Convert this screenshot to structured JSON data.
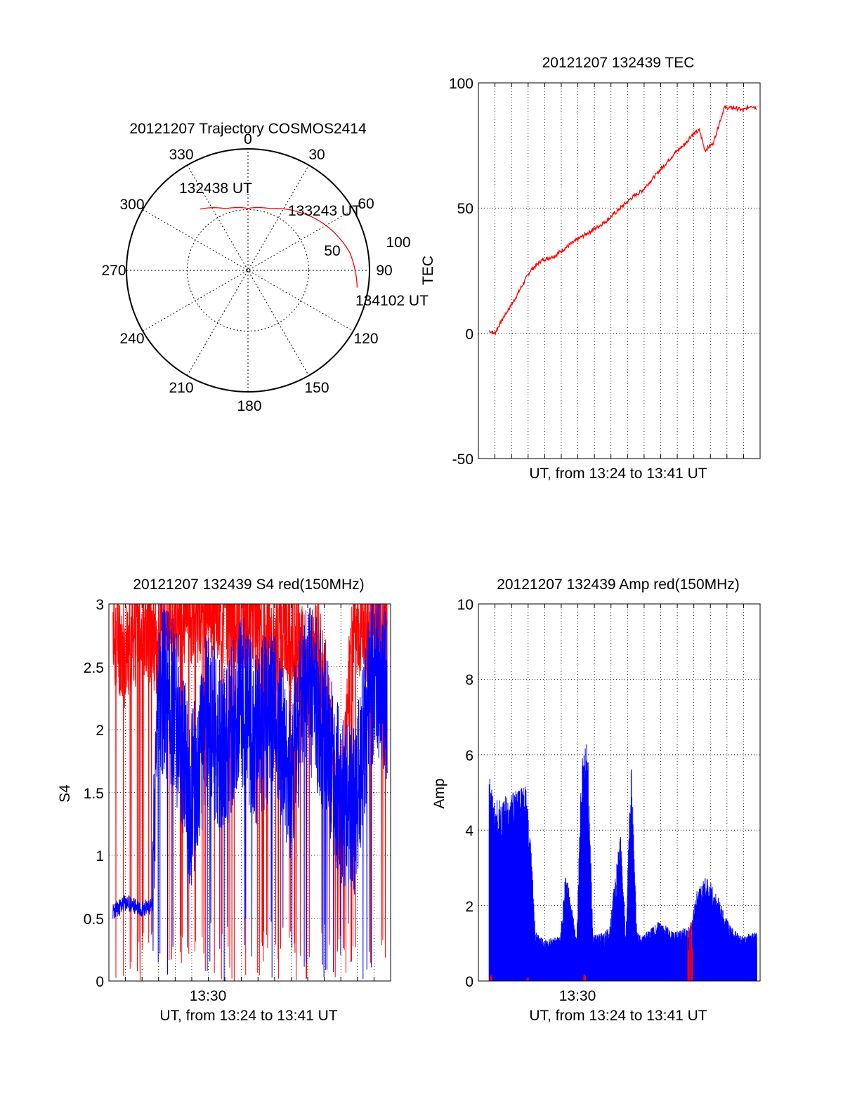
{
  "figure": {
    "background": "#ffffff",
    "colors": {
      "red_series": "#ff0000",
      "blue_series": "#0000ff",
      "axis": "#000000"
    }
  },
  "polar": {
    "title": "20121207 Trajectory COSMOS2414",
    "azimuth_labels": [
      "0",
      "30",
      "60",
      "90",
      "120",
      "150",
      "180",
      "210",
      "240",
      "270",
      "300",
      "330"
    ],
    "ring_labels": [
      "50",
      "100"
    ],
    "annotations": [
      "132438 UT",
      "133243 UT",
      "134102 UT"
    ]
  },
  "tec": {
    "title": "20121207 132439 TEC",
    "ylabel": "TEC",
    "xlabel": "UT, from 13:24 to 13:41 UT",
    "y_ticks": [
      "100",
      "50",
      "0",
      "-50"
    ]
  },
  "s4": {
    "title": "20121207 132439 S4 red(150MHz)",
    "ylabel": "S4",
    "xlabel": "UT, from 13:24 to 13:41 UT",
    "x_tick": "13:30",
    "y_ticks": [
      "3",
      "2.5",
      "2",
      "1.5",
      "1",
      "0.5",
      "0"
    ]
  },
  "amp": {
    "title": "20121207 132439 Amp red(150MHz)",
    "ylabel": "Amp",
    "xlabel": "UT, from 13:24 to 13:41 UT",
    "x_tick": "13:30",
    "y_ticks": [
      "10",
      "8",
      "6",
      "4",
      "2",
      "0"
    ]
  },
  "chart_data": [
    {
      "type": "scatter",
      "subtype": "polar-trajectory",
      "title": "20121207 Trajectory COSMOS2414",
      "r_range": [
        0,
        100
      ],
      "rings": [
        50,
        100
      ],
      "grid": true,
      "trajectory": [
        {
          "label": "132438 UT",
          "azimuth_deg": 322,
          "zenith_deg": 64
        },
        {
          "azimuth_deg": 340,
          "zenith_deg": 54
        },
        {
          "azimuth_deg": 0,
          "zenith_deg": 51
        },
        {
          "azimuth_deg": 20,
          "zenith_deg": 54
        },
        {
          "label": "133243 UT",
          "azimuth_deg": 40,
          "zenith_deg": 63
        },
        {
          "azimuth_deg": 60,
          "zenith_deg": 74
        },
        {
          "azimuth_deg": 80,
          "zenith_deg": 85
        },
        {
          "label": "134102 UT",
          "azimuth_deg": 99,
          "zenith_deg": 91
        }
      ]
    },
    {
      "type": "line",
      "title": "20121207 132439 TEC",
      "xlabel": "UT, from 13:24 to 13:41 UT",
      "ylabel": "TEC",
      "xlim": [
        "13:24",
        "13:41"
      ],
      "ylim": [
        -50,
        100
      ],
      "grid": true,
      "series": [
        {
          "color": "#ff0000",
          "x": [
            "13:24:39",
            "13:25:00",
            "13:25:30",
            "13:26:10",
            "13:26:40",
            "13:27:10",
            "13:27:50",
            "13:28:40",
            "13:29:30",
            "13:30:10",
            "13:31:10",
            "13:31:50",
            "13:32:30",
            "13:33:20",
            "13:34:00",
            "13:34:40",
            "13:35:20",
            "13:36:00",
            "13:36:40",
            "13:37:00",
            "13:37:30",
            "13:37:50",
            "13:38:20",
            "13:38:40",
            "13:39:00",
            "13:39:40",
            "13:40:10",
            "13:40:40",
            "13:41:00"
          ],
          "y": [
            1,
            0,
            6,
            13,
            19,
            25,
            29,
            31,
            35,
            38,
            42,
            45,
            49,
            54,
            57,
            62,
            67,
            72,
            76,
            79,
            81,
            73,
            76,
            83,
            90,
            90,
            89,
            91,
            90
          ]
        }
      ]
    },
    {
      "type": "line",
      "title": "20121207 132439 S4 red(150MHz)",
      "xlabel": "UT, from 13:24 to 13:41 UT",
      "ylabel": "S4",
      "xlim": [
        "13:24",
        "13:41"
      ],
      "x_ticks": [
        "13:30"
      ],
      "ylim": [
        0,
        3
      ],
      "grid": true,
      "series": [
        {
          "color": "#0000ff",
          "x": [
            "13:24:15",
            "13:25:00",
            "13:26:00",
            "13:26:40",
            "13:27:00",
            "13:28:00",
            "13:29:00",
            "13:30:00",
            "13:31:00",
            "13:32:00",
            "13:33:00",
            "13:34:00",
            "13:35:00",
            "13:36:00",
            "13:37:00",
            "13:38:00",
            "13:39:00",
            "13:40:00",
            "13:41:00"
          ],
          "y": [
            0.55,
            0.62,
            0.58,
            0.6,
            2.4,
            2.2,
            1.4,
            2.1,
            1.8,
            2.3,
            1.9,
            2.2,
            1.6,
            2.4,
            2.1,
            1.5,
            1.3,
            2.4,
            2.3
          ]
        },
        {
          "color": "#ff0000",
          "x": [
            "13:24:15",
            "13:25:00",
            "13:26:00",
            "13:27:00",
            "13:28:00",
            "13:30:00",
            "13:33:00",
            "13:34:00",
            "13:35:00",
            "13:36:00",
            "13:37:00",
            "13:38:00",
            "13:39:00",
            "13:40:00",
            "13:41:00"
          ],
          "y": [
            2.8,
            2.6,
            2.9,
            2.7,
            2.9,
            3.0,
            2.9,
            2.6,
            2.8,
            2.5,
            2.6,
            1.2,
            2.9,
            2.8,
            2.9
          ]
        }
      ]
    },
    {
      "type": "area",
      "title": "20121207 132439 Amp red(150MHz)",
      "xlabel": "UT, from 13:24 to 13:41 UT",
      "ylabel": "Amp",
      "xlim": [
        "13:24",
        "13:41"
      ],
      "x_ticks": [
        "13:30"
      ],
      "ylim": [
        0,
        10
      ],
      "grid": true,
      "series": [
        {
          "color": "#0000ff",
          "x": [
            "13:24:39",
            "13:25:00",
            "13:26:00",
            "13:27:00",
            "13:27:30",
            "13:28:00",
            "13:29:00",
            "13:29:20",
            "13:30:00",
            "13:30:20",
            "13:30:40",
            "13:31:00",
            "13:32:00",
            "13:32:40",
            "13:33:00",
            "13:33:20",
            "13:33:40",
            "13:34:00",
            "13:35:00",
            "13:36:00",
            "13:37:00",
            "13:37:20",
            "13:37:40",
            "13:38:00",
            "13:38:40",
            "13:39:20",
            "13:40:00",
            "13:41:00"
          ],
          "y": [
            5.5,
            4.8,
            5.0,
            5.2,
            1.3,
            1.1,
            1.2,
            3.0,
            1.1,
            6.3,
            6.4,
            1.2,
            1.4,
            4.1,
            1.2,
            5.9,
            1.3,
            1.2,
            1.6,
            1.3,
            1.5,
            2.4,
            2.7,
            2.8,
            2.2,
            1.5,
            1.2,
            1.3
          ]
        },
        {
          "color": "#ff0000",
          "x": [
            "13:24:45",
            "13:27:00",
            "13:30:30",
            "13:36:50",
            "13:37:00"
          ],
          "y": [
            0.2,
            0.1,
            0.2,
            1.4,
            1.6
          ]
        }
      ]
    }
  ]
}
